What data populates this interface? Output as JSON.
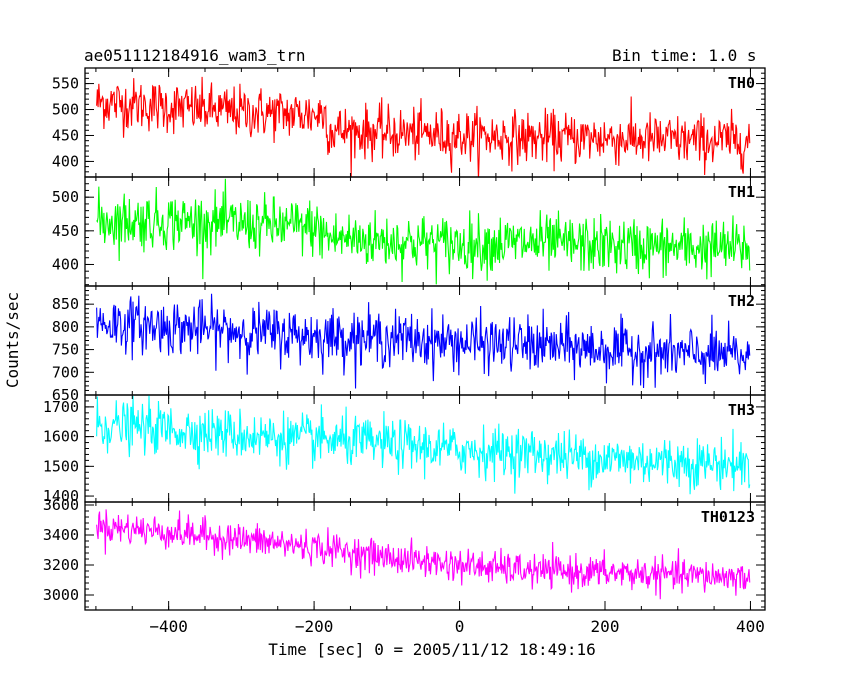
{
  "header": {
    "title": "ae051112184916_wam3_trn",
    "bin_time": "Bin time: 1.0 s"
  },
  "chart_data": {
    "type": "line",
    "xlabel": "Time [sec] 0 = 2005/11/12 18:49:16",
    "ylabel": "Counts/sec",
    "xlim": [
      -515,
      420
    ],
    "xticks": [
      -400,
      -200,
      0,
      200,
      400
    ],
    "x_step": 1.0,
    "x_range": [
      -499,
      399
    ],
    "panels": [
      {
        "name": "TH0",
        "color": "#ff0000",
        "ylim": [
          370,
          580
        ],
        "yticks": [
          400,
          450,
          500,
          550
        ],
        "trend_x": [
          -499,
          -400,
          -300,
          -200,
          -185,
          -180,
          -100,
          0,
          100,
          200,
          300,
          399
        ],
        "trend_y": [
          515,
          505,
          495,
          490,
          495,
          460,
          455,
          450,
          445,
          445,
          440,
          440
        ],
        "noise_sd": 25
      },
      {
        "name": "TH1",
        "color": "#00ff00",
        "ylim": [
          368,
          530
        ],
        "yticks": [
          400,
          450,
          500
        ],
        "trend_x": [
          -499,
          -400,
          -300,
          -200,
          -180,
          -100,
          0,
          100,
          200,
          300,
          399
        ],
        "trend_y": [
          465,
          465,
          460,
          455,
          440,
          435,
          430,
          432,
          428,
          425,
          425
        ],
        "noise_sd": 21
      },
      {
        "name": "TH2",
        "color": "#0000ff",
        "ylim": [
          650,
          890
        ],
        "yticks": [
          650,
          700,
          750,
          800,
          850
        ],
        "trend_x": [
          -499,
          -400,
          -300,
          -200,
          -100,
          0,
          100,
          200,
          300,
          399
        ],
        "trend_y": [
          810,
          800,
          790,
          780,
          775,
          765,
          760,
          750,
          740,
          735
        ],
        "noise_sd": 30
      },
      {
        "name": "TH3",
        "color": "#00ffff",
        "ylim": [
          1380,
          1740
        ],
        "yticks": [
          1400,
          1500,
          1600,
          1700
        ],
        "trend_x": [
          -499,
          -400,
          -300,
          -200,
          -100,
          0,
          100,
          200,
          300,
          399
        ],
        "trend_y": [
          1640,
          1625,
          1605,
          1590,
          1575,
          1555,
          1545,
          1525,
          1515,
          1505
        ],
        "noise_sd": 42
      },
      {
        "name": "TH0123",
        "color": "#ff00ff",
        "ylim": [
          2900,
          3620
        ],
        "yticks": [
          3000,
          3200,
          3400,
          3600
        ],
        "trend_x": [
          -499,
          -400,
          -300,
          -200,
          -100,
          0,
          100,
          200,
          300,
          399
        ],
        "trend_y": [
          3460,
          3420,
          3370,
          3320,
          3250,
          3200,
          3160,
          3150,
          3130,
          3120
        ],
        "noise_sd": 55
      }
    ]
  }
}
